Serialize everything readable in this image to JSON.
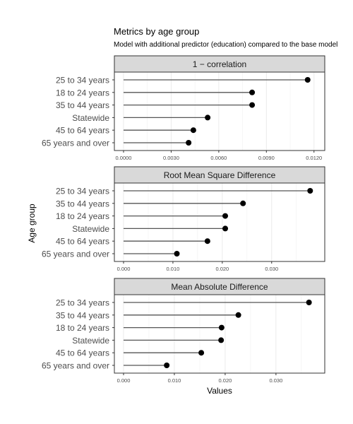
{
  "chart_data": {
    "type": "lollipop",
    "title": "Metrics by age group",
    "subtitle": "Model with additional predictor (education) compared to the base model",
    "xlabel": "Values",
    "ylabel": "Age group",
    "grid": true,
    "panels": [
      {
        "name": "1 − correlation",
        "xlim": [
          0,
          0.0121
        ],
        "xticks": [
          0,
          0.003,
          0.006,
          0.009,
          0.012
        ],
        "xtick_labels": [
          "0.0000",
          "0.0030",
          "0.0060",
          "0.0090",
          "0.0120"
        ],
        "categories": [
          "25 to 34 years",
          "18 to 24 years",
          "35 to 44 years",
          "Statewide",
          "45 to 64 years",
          "65 years and over"
        ],
        "values": [
          0.0116,
          0.0081,
          0.0081,
          0.0053,
          0.0044,
          0.0041
        ]
      },
      {
        "name": "Root Mean Square Difference",
        "xlim": [
          0,
          0.0389
        ],
        "xticks": [
          0,
          0.01,
          0.02,
          0.03
        ],
        "xtick_labels": [
          "0.000",
          "0.010",
          "0.020",
          "0.030"
        ],
        "categories": [
          "25 to 34 years",
          "35 to 44 years",
          "18 to 24 years",
          "Statewide",
          "45 to 64 years",
          "65 years and over"
        ],
        "values": [
          0.0378,
          0.0242,
          0.0206,
          0.0206,
          0.017,
          0.0108
        ]
      },
      {
        "name": "Mean Absolute Difference",
        "xlim": [
          0,
          0.0378
        ],
        "xticks": [
          0,
          0.01,
          0.02,
          0.03
        ],
        "xtick_labels": [
          "0.000",
          "0.010",
          "0.020",
          "0.030"
        ],
        "categories": [
          "25 to 34 years",
          "35 to 44 years",
          "18 to 24 years",
          "Statewide",
          "45 to 64 years",
          "65 years and over"
        ],
        "values": [
          0.0365,
          0.0226,
          0.0193,
          0.0192,
          0.0153,
          0.0085
        ]
      }
    ]
  }
}
